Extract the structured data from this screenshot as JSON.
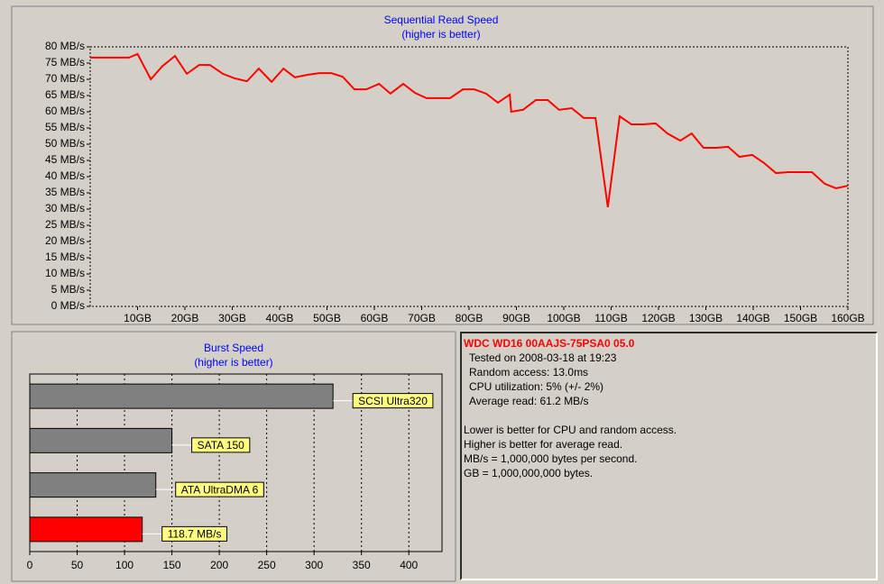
{
  "chart_data": [
    {
      "type": "line",
      "title": "Sequential Read Speed",
      "subtitle": "(higher is better)",
      "color": "#ff0000",
      "x": [
        0,
        8.2,
        10,
        12.8,
        15.2,
        17.9,
        20.4,
        23,
        25.3,
        28,
        30.5,
        33.1,
        35.6,
        38.3,
        40.8,
        43.2,
        45.9,
        48.4,
        50.9,
        53.3,
        55.8,
        58.3,
        61,
        63.4,
        66.1,
        68.6,
        71,
        73.5,
        76,
        78.7,
        81.1,
        83.6,
        86.1,
        88.6,
        88.9,
        91.4,
        94.1,
        96.6,
        99,
        101.7,
        104.2,
        106.7,
        109.3,
        111.8,
        114.3,
        116.8,
        119.4,
        121.9,
        124.6,
        127,
        129.5,
        132.2,
        134.7,
        137.1,
        139.8,
        142.3,
        144.8,
        147.4,
        149.9,
        152.4,
        155.1,
        157.5,
        160
      ],
      "values": [
        76.7,
        76.7,
        77.8,
        70,
        74,
        77.2,
        71.7,
        74.4,
        74.4,
        71.7,
        70.3,
        69.4,
        73.3,
        69.2,
        73.3,
        70.6,
        71.4,
        71.9,
        71.9,
        70.8,
        66.9,
        66.9,
        68.6,
        65.6,
        68.6,
        65.8,
        64.2,
        64.2,
        64.2,
        66.9,
        66.9,
        65.6,
        62.8,
        65.3,
        60,
        60.6,
        63.6,
        63.6,
        60.6,
        61.1,
        58.1,
        58.1,
        30.6,
        58.6,
        56.1,
        56.1,
        56.4,
        53.3,
        51.1,
        53.3,
        48.9,
        48.9,
        49.2,
        46.1,
        46.7,
        44.2,
        41.1,
        41.4,
        41.4,
        41.4,
        37.8,
        36.4,
        37.2
      ],
      "xlim": [
        0,
        160
      ],
      "xticks": [
        {
          "value": 10,
          "label": "10GB"
        },
        {
          "value": 20,
          "label": "20GB"
        },
        {
          "value": 30,
          "label": "30GB"
        },
        {
          "value": 40,
          "label": "40GB"
        },
        {
          "value": 50,
          "label": "50GB"
        },
        {
          "value": 60,
          "label": "60GB"
        },
        {
          "value": 70,
          "label": "70GB"
        },
        {
          "value": 80,
          "label": "80GB"
        },
        {
          "value": 90,
          "label": "90GB"
        },
        {
          "value": 100,
          "label": "100GB"
        },
        {
          "value": 110,
          "label": "110GB"
        },
        {
          "value": 120,
          "label": "120GB"
        },
        {
          "value": 130,
          "label": "130GB"
        },
        {
          "value": 140,
          "label": "140GB"
        },
        {
          "value": 150,
          "label": "150GB"
        },
        {
          "value": 160,
          "label": "160GB"
        }
      ],
      "ylim": [
        0,
        80
      ],
      "yticks": [
        {
          "value": 0,
          "label": "0 MB/s"
        },
        {
          "value": 5,
          "label": "5 MB/s"
        },
        {
          "value": 10,
          "label": "10 MB/s"
        },
        {
          "value": 15,
          "label": "15 MB/s"
        },
        {
          "value": 20,
          "label": "20 MB/s"
        },
        {
          "value": 25,
          "label": "25 MB/s"
        },
        {
          "value": 30,
          "label": "30 MB/s"
        },
        {
          "value": 35,
          "label": "35 MB/s"
        },
        {
          "value": 40,
          "label": "40 MB/s"
        },
        {
          "value": 45,
          "label": "45 MB/s"
        },
        {
          "value": 50,
          "label": "50 MB/s"
        },
        {
          "value": 55,
          "label": "55 MB/s"
        },
        {
          "value": 60,
          "label": "60 MB/s"
        },
        {
          "value": 65,
          "label": "65 MB/s"
        },
        {
          "value": 70,
          "label": "70 MB/s"
        },
        {
          "value": 75,
          "label": "75 MB/s"
        },
        {
          "value": 80,
          "label": "80 MB/s"
        }
      ],
      "grid": false
    },
    {
      "type": "barh",
      "title": "Burst Speed",
      "subtitle": "(higher is better)",
      "categories": [
        "SCSI Ultra320",
        "SATA 150",
        "ATA UltraDMA 6",
        null
      ],
      "values": [
        320,
        150,
        133,
        118.7
      ],
      "value_labels": [
        null,
        null,
        null,
        "118.7 MB/s"
      ],
      "colors": [
        "#808080",
        "#808080",
        "#808080",
        "#ff0000"
      ],
      "xlim": [
        0,
        435
      ],
      "xticks": [
        0,
        50,
        100,
        150,
        200,
        250,
        300,
        350,
        400
      ],
      "grid": true
    }
  ],
  "info": {
    "title": "WDC WD16 00AAJS-75PSA0 05.0",
    "details": [
      "Tested on 2008-03-18 at 19:23",
      "Random access: 13.0ms",
      "CPU utilization: 5% (+/- 2%)",
      "Average read: 61.2 MB/s"
    ],
    "notes": [
      "Lower is better for CPU and random access.",
      "Higher is better for average read.",
      "MB/s = 1,000,000 bytes per second.",
      "GB = 1,000,000,000 bytes."
    ]
  }
}
